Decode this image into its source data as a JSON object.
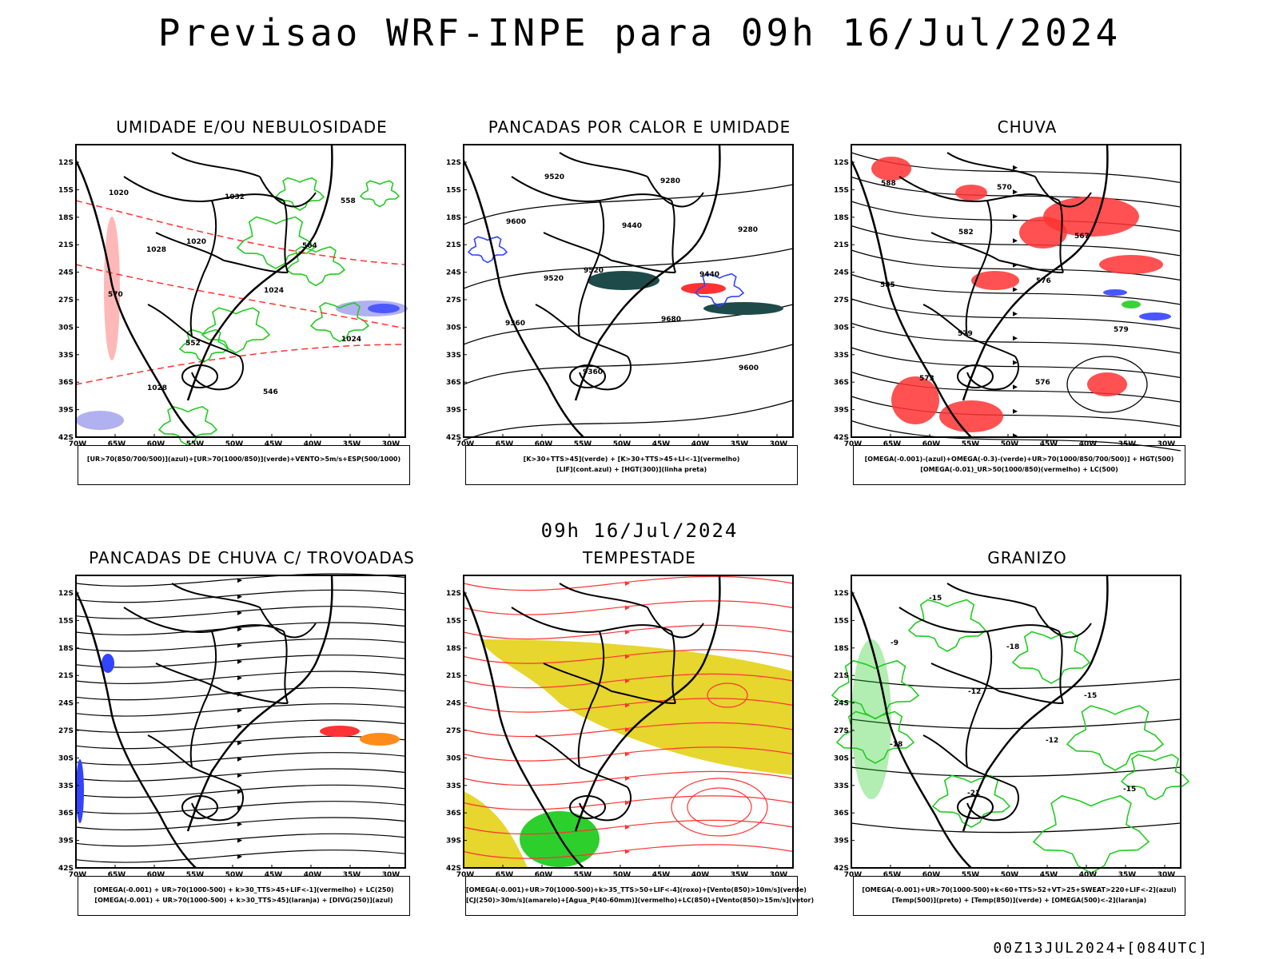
{
  "header": {
    "title": "Previsao WRF-INPE  para 09h 16/Jul/2024"
  },
  "mid_date": "09h 16/Jul/2024",
  "footer": "00Z13JUL2024+[084UTC]",
  "axes": {
    "lat_labels": [
      "12S",
      "15S",
      "18S",
      "21S",
      "24S",
      "27S",
      "30S",
      "33S",
      "36S",
      "39S",
      "42S"
    ],
    "lon_labels": [
      "70W",
      "65W",
      "60W",
      "55W",
      "50W",
      "45W",
      "40W",
      "35W",
      "30W"
    ]
  },
  "colors": {
    "green": "#22cc22",
    "red": "#ff3333",
    "blue": "#3344ff",
    "yellow": "#e6d62e",
    "orange": "#ff8c1a",
    "darkteal": "#1e4a4a",
    "lavender": "#a8a8f0"
  },
  "panels": [
    {
      "title": "UMIDADE E/OU NEBULOSIDADE",
      "legend": [
        "[UR>70(850/700/500)](azul)+[UR>70(1000/850)](verde)+VENTO>5m/s+ESP(500/1000)"
      ],
      "contour_labels": [
        "1020",
        "1020",
        "1024",
        "1024",
        "1028",
        "1032",
        "564",
        "570",
        "552",
        "546",
        "558",
        "1028"
      ]
    },
    {
      "title": "PANCADAS POR CALOR E UMIDADE",
      "legend": [
        "[K>30+TTS>45](verde) + [K>30+TTS>45+LI<-1](vermelho)",
        "[LIF](cont.azul) + [HGT(300)](linha preta)"
      ],
      "contour_labels": [
        "9600",
        "9520",
        "9680",
        "9600",
        "9520",
        "9440",
        "9440",
        "9360",
        "9360",
        "9280",
        "9280",
        "9520"
      ]
    },
    {
      "title": "CHUVA",
      "legend": [
        "[OMEGA(-0.001)-(azul)+OMEGA(-0.3)-(verde)+UR>70(1000/850/700/500)] + HGT(500)",
        "[OMEGA(-0.01)_UR>50(1000/850)(vermelho) + LC(500)"
      ],
      "contour_labels": [
        "588",
        "582",
        "576",
        "579",
        "573",
        "570",
        "567",
        "585",
        "579",
        "576"
      ]
    },
    {
      "title": "PANCADAS DE CHUVA C/ TROVOADAS",
      "legend": [
        "[OMEGA(-0.001) + UR>70(1000-500) + k>30_TTS>45+LIF<-1](vermelho) + LC(250)",
        "[OMEGA(-0.001) + UR>70(1000-500) + k>30_TTS>45](laranja) + [DIVG(250)](azul)"
      ],
      "contour_labels": []
    },
    {
      "title": "TEMPESTADE",
      "legend": [
        "[OMEGA(-0.001)+UR>70(1000-500)+k>35_TTS>50+LIF<-4](roxo)+[Vento(850)>10m/s](verde)",
        "[CJ(250)>30m/s](amarelo)+[Agua_P(40-60mm)](vermelho)+LC(850)+[Vento(850)>15m/s](vetor)"
      ],
      "contour_labels": []
    },
    {
      "title": "GRANIZO",
      "legend": [
        "[OMEGA(-0.001)+UR>70(1000-500)+k<60+TTS>52+VT>25+SWEAT>220+LIF<-2](azul)",
        "[Temp(500)](preto) + [Temp(850)](verde) + [OMEGA(500)<-2](laranja)"
      ],
      "contour_labels": [
        "-9",
        "-12",
        "-12",
        "-15",
        "-15",
        "-18",
        "-15",
        "-18",
        "-21"
      ]
    }
  ]
}
